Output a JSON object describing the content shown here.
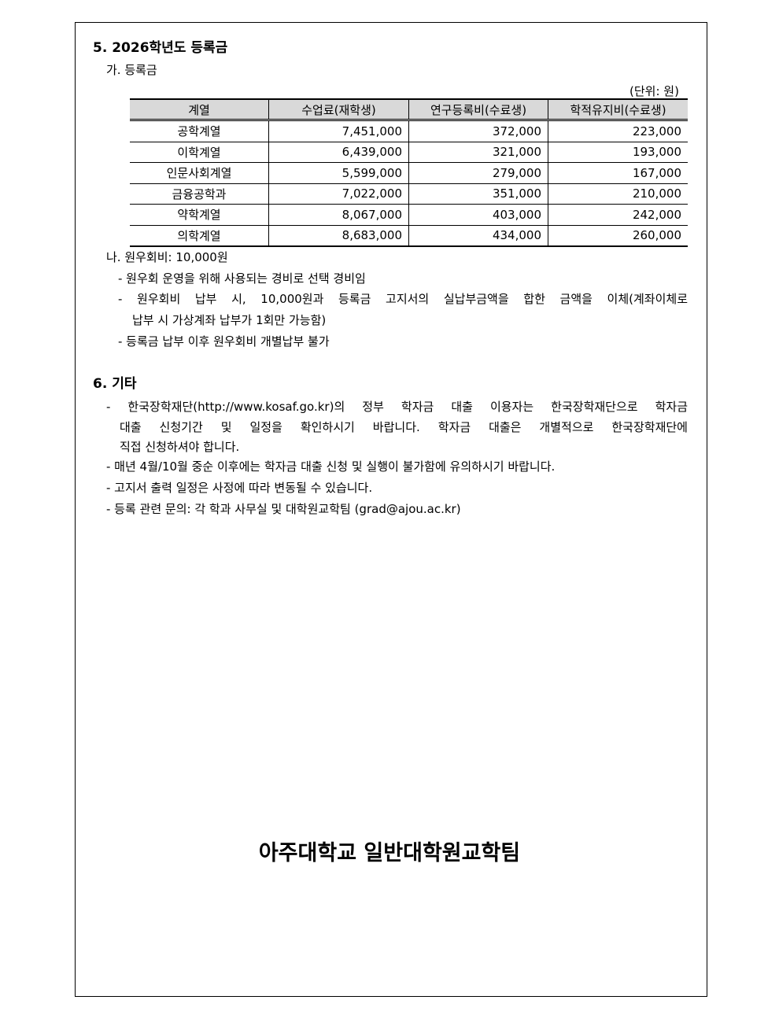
{
  "section5": {
    "title": "5. 2026학년도 등록금",
    "sub_a": "가. 등록금",
    "unit": "(단위: 원)",
    "table": {
      "headers": [
        "계열",
        "수업료(재학생)",
        "연구등록비(수료생)",
        "학적유지비(수료생)"
      ],
      "rows": [
        [
          "공학계열",
          "7,451,000",
          "372,000",
          "223,000"
        ],
        [
          "이학계열",
          "6,439,000",
          "321,000",
          "193,000"
        ],
        [
          "인문사회계열",
          "5,599,000",
          "279,000",
          "167,000"
        ],
        [
          "금융공학과",
          "7,022,000",
          "351,000",
          "210,000"
        ],
        [
          "약학계열",
          "8,067,000",
          "403,000",
          "242,000"
        ],
        [
          "의학계열",
          "8,683,000",
          "434,000",
          "260,000"
        ]
      ]
    },
    "sub_b": "나. 원우회비: 10,000원",
    "bullets": [
      "- 원우회 운영을 위해 사용되는 경비로 선택 경비임",
      "- 원우회비 납부 시, 10,000원과 등록금 고지서의 실납부금액을 합한 금액을 이체(계좌이체로",
      "납부 시 가상계좌 납부가 1회만 가능함)",
      "- 등록금 납부 이후 원우회비 개별납부 불가"
    ]
  },
  "section6": {
    "title": "6. 기타",
    "lines": [
      "- 한국장학재단(http://www.kosaf.go.kr)의 정부 학자금 대출 이용자는 한국장학재단으로 학자금",
      "대출 신청기간 및 일정을 확인하시기 바랍니다. 학자금 대출은 개별적으로 한국장학재단에",
      "직접 신청하셔야 합니다.",
      "- 매년 4월/10월 중순 이후에는 학자금 대출 신청 및 실행이 불가함에 유의하시기 바랍니다.",
      "- 고지서 출력 일정은 사정에 따라 변동될 수 있습니다.",
      "- 등록 관련 문의: 각 학과 사무실 및 대학원교학팀 (grad@ajou.ac.kr)"
    ]
  },
  "footer": "아주대학교 일반대학원교학팀"
}
